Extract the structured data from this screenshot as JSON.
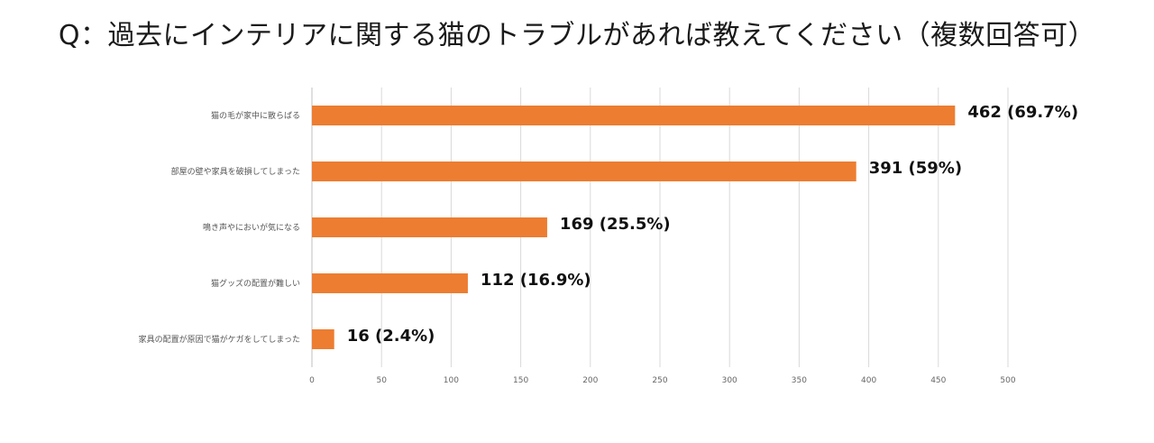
{
  "title": "Q：過去にインテリアに関する猫のトラブルがあれば教えてください（複数回答可）",
  "chart_data": {
    "type": "bar",
    "orientation": "horizontal",
    "categories": [
      "猫の毛が家中に散らばる",
      "部屋の壁や家具を破損してしまった",
      "鳴き声やにおいが気になる",
      "猫グッズの配置が難しい",
      "家具の配置が原因で猫がケガをしてしまった"
    ],
    "values": [
      462,
      391,
      169,
      112,
      16
    ],
    "data_labels": [
      "462 (69.7%)",
      "391 (59%)",
      "169 (25.5%)",
      "112 (16.9%)",
      "16 (2.4%)"
    ],
    "xlim": [
      0,
      500
    ],
    "x_ticks": [
      0,
      50,
      100,
      150,
      200,
      250,
      300,
      350,
      400,
      450,
      500
    ],
    "grid": true,
    "bar_color": "#ED7D31",
    "xlabel": "",
    "ylabel": ""
  }
}
